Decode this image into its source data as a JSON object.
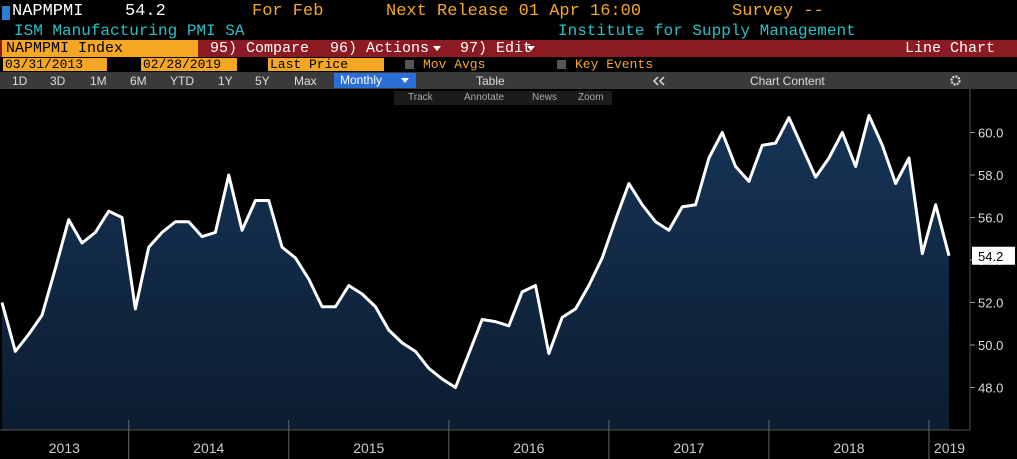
{
  "header": {
    "ticker": "NAPMPMI",
    "last": "54.2",
    "period": "For Feb",
    "next_release": "Next Release 01 Apr 16:00",
    "survey": "Survey --",
    "name": "ISM Manufacturing PMI SA",
    "source": "Institute for Supply Management"
  },
  "toolbar": {
    "security": "NAPMPMI Index",
    "compare": "95) Compare",
    "actions": "96) Actions",
    "edit": "97) Edit",
    "chart_type": "Line Chart",
    "start_date": "03/31/2013",
    "end_date": "02/28/2019",
    "field": "Last Price",
    "mov_avgs": "Mov Avgs",
    "key_events": "Key Events",
    "ranges": [
      "1D",
      "3D",
      "1M",
      "6M",
      "YTD",
      "1Y",
      "5Y",
      "Max"
    ],
    "frequency": "Monthly",
    "table": "Table",
    "chart_content": "Chart Content",
    "tools": [
      "Track",
      "Annotate",
      "News",
      "Zoom"
    ]
  },
  "chart_data": {
    "type": "line",
    "color": "#ffffff",
    "fill_color": "#163457",
    "categories": [
      "2013",
      null,
      null,
      null,
      null,
      null,
      null,
      null,
      null,
      null,
      "2014",
      null,
      null,
      null,
      null,
      null,
      null,
      null,
      null,
      null,
      null,
      null,
      "2015",
      null,
      null,
      null,
      null,
      null,
      null,
      null,
      null,
      null,
      null,
      null,
      "2016",
      null,
      null,
      null,
      null,
      null,
      null,
      null,
      null,
      null,
      null,
      null,
      "2017",
      null,
      null,
      null,
      null,
      null,
      null,
      null,
      null,
      null,
      null,
      null,
      "2018",
      null,
      null,
      null,
      null,
      null,
      null,
      null,
      null,
      null,
      null,
      null,
      "2019",
      null
    ],
    "values": [
      52.0,
      49.7,
      50.5,
      51.4,
      53.6,
      55.9,
      54.8,
      55.3,
      56.3,
      56.0,
      51.7,
      54.6,
      55.3,
      55.8,
      55.8,
      55.1,
      55.3,
      58.0,
      55.4,
      56.8,
      56.8,
      54.6,
      54.1,
      53.1,
      51.8,
      51.8,
      52.8,
      52.4,
      51.8,
      50.7,
      50.1,
      49.7,
      48.9,
      48.4,
      48.0,
      49.6,
      51.2,
      51.1,
      50.9,
      52.5,
      52.8,
      49.6,
      51.3,
      51.7,
      52.8,
      54.1,
      55.9,
      57.6,
      56.6,
      55.8,
      55.4,
      56.5,
      56.6,
      58.8,
      60.0,
      58.4,
      57.7,
      59.4,
      59.5,
      60.7,
      59.3,
      57.9,
      58.8,
      60.0,
      58.4,
      60.8,
      59.4,
      57.6,
      58.8,
      54.3,
      56.6,
      54.2
    ],
    "last_label": "54.2",
    "ylim": [
      46,
      62
    ],
    "yticks": [
      {
        "value": 48,
        "label": "48.0"
      },
      {
        "value": 50,
        "label": "50.0"
      },
      {
        "value": 52,
        "label": "52.0"
      },
      {
        "value": 54,
        "label": "54.0"
      },
      {
        "value": 56,
        "label": "56.0"
      },
      {
        "value": 58,
        "label": "58.0"
      },
      {
        "value": 60,
        "label": "60.0"
      }
    ],
    "grid": false
  }
}
